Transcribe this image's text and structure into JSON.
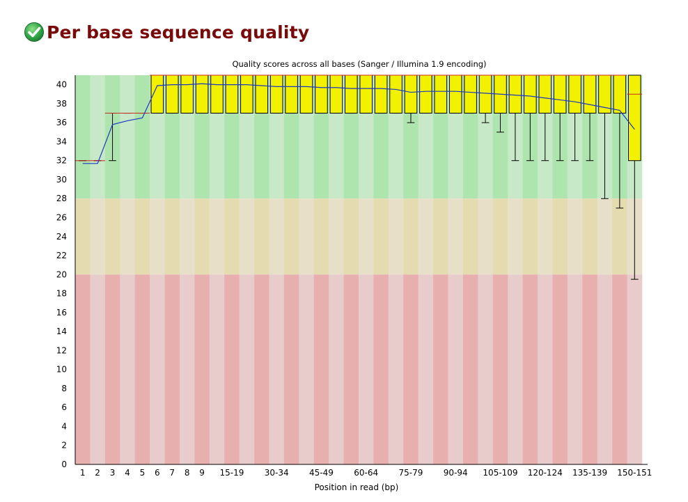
{
  "module": {
    "title": "Per base sequence quality",
    "status_icon": "check-circle-icon",
    "status": "pass",
    "colors": {
      "title": "#7a0a0a",
      "pass_icon": "#33a84a"
    }
  },
  "chart_data": {
    "type": "boxplot",
    "title": "Quality scores across all bases (Sanger / Illumina 1.9 encoding)",
    "xlabel": "Position in read (bp)",
    "ylabel": "",
    "ylim": [
      0,
      41
    ],
    "yticks": [
      0,
      2,
      4,
      6,
      8,
      10,
      12,
      14,
      16,
      18,
      20,
      22,
      24,
      26,
      28,
      30,
      32,
      34,
      36,
      38,
      40
    ],
    "zones": [
      {
        "name": "good",
        "from": 28,
        "to": 41,
        "colors": [
          "#aee5ae",
          "#c7e9c7"
        ]
      },
      {
        "name": "reasonable",
        "from": 20,
        "to": 28,
        "colors": [
          "#e5dbb0",
          "#e8dfc8"
        ]
      },
      {
        "name": "poor",
        "from": 0,
        "to": 20,
        "colors": [
          "#e8afaf",
          "#e8cccc"
        ]
      }
    ],
    "colors": {
      "mean_line": "#1d38c0",
      "median": "#c8281e",
      "box": "#f2f200",
      "whisker": "#000000"
    },
    "categories": [
      "1",
      "2",
      "3",
      "4",
      "5",
      "6",
      "7",
      "8",
      "9",
      "10-14",
      "15-19",
      "20-24",
      "25-29",
      "30-34",
      "35-39",
      "40-44",
      "45-49",
      "50-54",
      "55-59",
      "60-64",
      "65-69",
      "70-74",
      "75-79",
      "80-84",
      "85-89",
      "90-94",
      "95-99",
      "100-104",
      "105-109",
      "110-114",
      "115-119",
      "120-124",
      "125-129",
      "130-134",
      "135-139",
      "140-144",
      "145-149",
      "150-151"
    ],
    "visible_tick_labels": [
      "1",
      "2",
      "3",
      "4",
      "5",
      "6",
      "7",
      "8",
      "9",
      "15-19",
      "30-34",
      "45-49",
      "60-64",
      "75-79",
      "90-94",
      "105-109",
      "120-124",
      "135-139",
      "150-151"
    ],
    "series": [
      {
        "name": "mean",
        "values": [
          31.7,
          31.7,
          35.8,
          36.2,
          36.5,
          39.9,
          40.0,
          40.0,
          40.1,
          40.0,
          40.0,
          40.0,
          39.9,
          39.8,
          39.8,
          39.8,
          39.7,
          39.7,
          39.6,
          39.6,
          39.6,
          39.5,
          39.2,
          39.3,
          39.3,
          39.3,
          39.2,
          39.1,
          39.0,
          38.9,
          38.8,
          38.6,
          38.4,
          38.2,
          37.9,
          37.6,
          37.3,
          35.3
        ]
      },
      {
        "name": "median",
        "values": [
          32,
          32,
          37,
          37,
          37,
          41,
          41,
          41,
          41,
          41,
          41,
          41,
          41,
          41,
          41,
          41,
          41,
          41,
          41,
          41,
          41,
          41,
          41,
          41,
          41,
          41,
          41,
          41,
          41,
          41,
          41,
          41,
          41,
          41,
          41,
          41,
          41,
          39
        ]
      },
      {
        "name": "lower_quartile",
        "values": [
          32,
          32,
          37,
          37,
          37,
          37,
          37,
          37,
          37,
          37,
          37,
          37,
          37,
          37,
          37,
          37,
          37,
          37,
          37,
          37,
          37,
          37,
          37,
          37,
          37,
          37,
          37,
          37,
          37,
          37,
          37,
          37,
          37,
          37,
          37,
          37,
          37,
          32
        ]
      },
      {
        "name": "upper_quartile",
        "values": [
          32,
          32,
          37,
          37,
          37,
          41,
          41,
          41,
          41,
          41,
          41,
          41,
          41,
          41,
          41,
          41,
          41,
          41,
          41,
          41,
          41,
          41,
          41,
          41,
          41,
          41,
          41,
          41,
          41,
          41,
          41,
          41,
          41,
          41,
          41,
          41,
          41,
          41
        ]
      },
      {
        "name": "10th_percentile",
        "values": [
          32,
          32,
          32,
          37,
          37,
          37,
          37,
          37,
          37,
          37,
          37,
          37,
          37,
          37,
          37,
          37,
          37,
          37,
          37,
          37,
          37,
          37,
          36,
          37,
          37,
          37,
          37,
          36,
          35,
          32,
          32,
          32,
          32,
          32,
          32,
          28,
          27,
          19.5
        ]
      },
      {
        "name": "90th_percentile",
        "values": [
          32,
          32,
          37,
          37,
          37,
          41,
          41,
          41,
          41,
          41,
          41,
          41,
          41,
          41,
          41,
          41,
          41,
          41,
          41,
          41,
          41,
          41,
          41,
          41,
          41,
          41,
          41,
          41,
          41,
          41,
          41,
          41,
          41,
          41,
          41,
          41,
          41,
          41
        ]
      }
    ]
  }
}
